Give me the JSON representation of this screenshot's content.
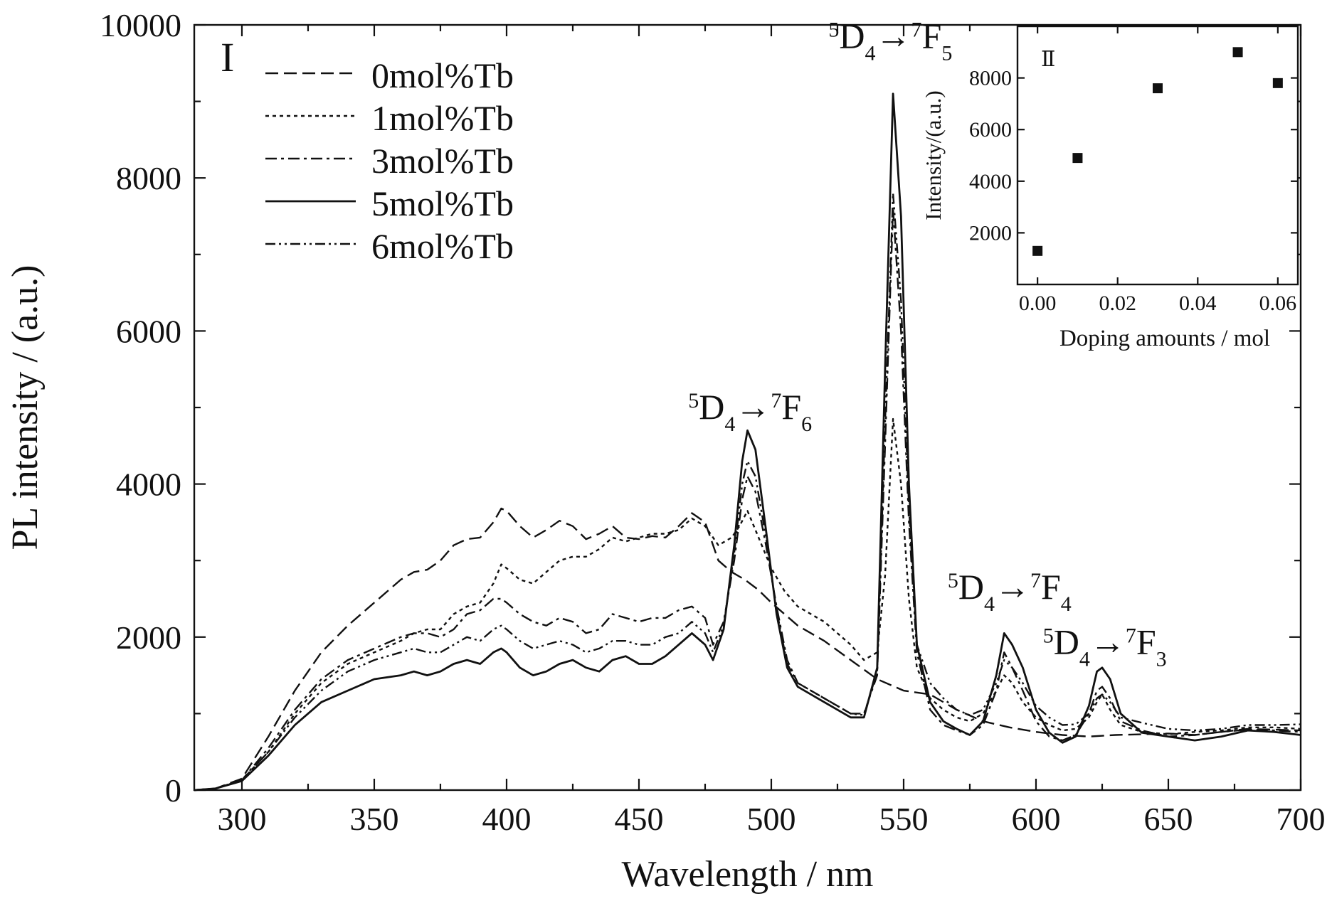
{
  "chart_data": [
    {
      "type": "line",
      "panel_label": "I",
      "xlabel": "Wavelength / nm",
      "ylabel": "PL intensity / (a.u.)",
      "xlim": [
        282,
        700
      ],
      "ylim": [
        0,
        10000
      ],
      "xticks": [
        300,
        350,
        400,
        450,
        500,
        550,
        600,
        650,
        700
      ],
      "yticks": [
        0,
        2000,
        4000,
        6000,
        8000,
        10000
      ],
      "grid": false,
      "legend_position": "top-left",
      "annotations": [
        {
          "pre": "5",
          "main": "D",
          "sub": "4",
          "arrow": "→",
          "pre2": "7",
          "main2": "F",
          "sub2": "5",
          "x": 545,
          "y": 9700
        },
        {
          "pre": "5",
          "main": "D",
          "sub": "4",
          "arrow": "→",
          "pre2": "7",
          "main2": "F",
          "sub2": "6",
          "x": 492,
          "y": 4850
        },
        {
          "pre": "5",
          "main": "D",
          "sub": "4",
          "arrow": "→",
          "pre2": "7",
          "main2": "F",
          "sub2": "4",
          "x": 590,
          "y": 2500
        },
        {
          "pre": "5",
          "main": "D",
          "sub": "4",
          "arrow": "→",
          "pre2": "7",
          "main2": "F",
          "sub2": "3",
          "x": 626,
          "y": 1780
        }
      ],
      "series": [
        {
          "name": "0mol%Tb",
          "dash": "dash",
          "x": [
            282,
            290,
            300,
            310,
            320,
            330,
            340,
            350,
            360,
            365,
            370,
            375,
            380,
            385,
            390,
            395,
            398,
            400,
            405,
            410,
            415,
            420,
            425,
            430,
            435,
            440,
            445,
            450,
            455,
            460,
            465,
            470,
            475,
            480,
            485,
            490,
            495,
            500,
            510,
            520,
            530,
            540,
            550,
            560,
            570,
            580,
            590,
            600,
            610,
            620,
            630,
            640,
            650,
            660,
            670,
            680,
            690,
            700
          ],
          "y": [
            0,
            20,
            150,
            700,
            1300,
            1800,
            2150,
            2450,
            2750,
            2850,
            2880,
            3000,
            3200,
            3280,
            3300,
            3500,
            3680,
            3650,
            3450,
            3300,
            3400,
            3520,
            3450,
            3280,
            3350,
            3450,
            3300,
            3280,
            3320,
            3300,
            3450,
            3620,
            3500,
            3000,
            2850,
            2750,
            2620,
            2450,
            2150,
            1950,
            1700,
            1450,
            1300,
            1250,
            1050,
            900,
            820,
            760,
            720,
            700,
            720,
            730,
            740,
            720,
            760,
            800,
            790,
            780
          ]
        },
        {
          "name": "1mol%Tb",
          "dash": "dot",
          "x": [
            282,
            290,
            300,
            310,
            320,
            330,
            340,
            350,
            360,
            365,
            370,
            375,
            380,
            385,
            390,
            395,
            398,
            400,
            405,
            410,
            415,
            420,
            425,
            430,
            435,
            440,
            445,
            450,
            455,
            460,
            465,
            470,
            475,
            480,
            485,
            488,
            491,
            494,
            500,
            505,
            510,
            520,
            530,
            535,
            540,
            543,
            546,
            549,
            552,
            555,
            560,
            565,
            570,
            575,
            580,
            585,
            588,
            591,
            595,
            600,
            605,
            610,
            615,
            620,
            623,
            625,
            628,
            632,
            640,
            650,
            660,
            670,
            680,
            690,
            700
          ],
          "y": [
            0,
            20,
            130,
            500,
            1000,
            1400,
            1650,
            1800,
            1950,
            2050,
            2100,
            2100,
            2300,
            2400,
            2450,
            2700,
            2950,
            2900,
            2750,
            2700,
            2850,
            3000,
            3050,
            3050,
            3150,
            3300,
            3250,
            3300,
            3350,
            3350,
            3400,
            3550,
            3450,
            3200,
            3300,
            3450,
            3650,
            3400,
            2900,
            2600,
            2400,
            2200,
            1900,
            1700,
            1800,
            2800,
            4850,
            4000,
            2500,
            1600,
            1200,
            1050,
            950,
            900,
            1000,
            1300,
            1500,
            1400,
            1150,
            950,
            850,
            780,
            800,
            950,
            1150,
            1250,
            1050,
            850,
            760,
            730,
            760,
            780,
            820,
            820,
            800
          ]
        },
        {
          "name": "3mol%Tb",
          "dash": "dashdot",
          "x": [
            282,
            290,
            300,
            310,
            320,
            330,
            340,
            350,
            360,
            365,
            370,
            375,
            380,
            385,
            390,
            395,
            398,
            400,
            405,
            410,
            415,
            420,
            425,
            430,
            435,
            440,
            445,
            450,
            455,
            460,
            465,
            470,
            475,
            478,
            482,
            486,
            489,
            491,
            494,
            498,
            502,
            506,
            510,
            520,
            530,
            535,
            540,
            543,
            546,
            549,
            552,
            555,
            560,
            565,
            570,
            575,
            580,
            585,
            588,
            591,
            595,
            600,
            605,
            610,
            615,
            620,
            623,
            625,
            628,
            632,
            640,
            650,
            660,
            670,
            680,
            690,
            700
          ],
          "y": [
            0,
            20,
            130,
            550,
            1050,
            1450,
            1700,
            1850,
            2000,
            2050,
            2050,
            2000,
            2100,
            2300,
            2350,
            2500,
            2500,
            2450,
            2300,
            2200,
            2150,
            2250,
            2200,
            2050,
            2100,
            2300,
            2250,
            2200,
            2250,
            2250,
            2350,
            2400,
            2250,
            1900,
            2200,
            3000,
            3800,
            4100,
            3900,
            3200,
            2400,
            1700,
            1400,
            1200,
            1000,
            1000,
            1500,
            4500,
            7600,
            6000,
            3500,
            1800,
            1050,
            850,
            780,
            720,
            850,
            1300,
            1800,
            1600,
            1300,
            900,
            700,
            650,
            720,
            1000,
            1300,
            1350,
            1200,
            900,
            780,
            700,
            720,
            760,
            790,
            780,
            760
          ]
        },
        {
          "name": "5mol%Tb",
          "dash": "solid",
          "x": [
            282,
            290,
            300,
            310,
            320,
            330,
            340,
            350,
            360,
            365,
            370,
            375,
            380,
            385,
            390,
            395,
            398,
            400,
            405,
            410,
            415,
            420,
            425,
            430,
            435,
            440,
            445,
            450,
            455,
            460,
            465,
            470,
            475,
            478,
            482,
            486,
            489,
            491,
            494,
            498,
            502,
            506,
            510,
            520,
            530,
            535,
            540,
            543,
            546,
            549,
            552,
            555,
            560,
            565,
            570,
            575,
            580,
            585,
            588,
            591,
            595,
            600,
            605,
            610,
            615,
            620,
            623,
            625,
            628,
            632,
            640,
            650,
            660,
            670,
            680,
            690,
            700
          ],
          "y": [
            0,
            20,
            120,
            450,
            850,
            1150,
            1300,
            1450,
            1500,
            1550,
            1500,
            1550,
            1650,
            1700,
            1650,
            1800,
            1850,
            1800,
            1600,
            1500,
            1550,
            1650,
            1700,
            1600,
            1550,
            1700,
            1750,
            1650,
            1650,
            1750,
            1900,
            2050,
            1900,
            1700,
            2100,
            3200,
            4300,
            4700,
            4450,
            3400,
            2300,
            1600,
            1350,
            1150,
            950,
            950,
            1600,
            5500,
            9100,
            7500,
            4000,
            1900,
            1150,
            900,
            800,
            720,
            900,
            1500,
            2050,
            1900,
            1600,
            1050,
            750,
            620,
            700,
            1100,
            1550,
            1600,
            1450,
            1000,
            750,
            700,
            650,
            700,
            780,
            760,
            720
          ]
        },
        {
          "name": "6mol%Tb",
          "dash": "dashdotdot",
          "x": [
            282,
            290,
            300,
            310,
            320,
            330,
            340,
            350,
            360,
            365,
            370,
            375,
            380,
            385,
            390,
            395,
            398,
            400,
            405,
            410,
            415,
            420,
            425,
            430,
            435,
            440,
            445,
            450,
            455,
            460,
            465,
            470,
            475,
            478,
            482,
            486,
            489,
            491,
            494,
            498,
            502,
            506,
            510,
            520,
            530,
            535,
            540,
            543,
            546,
            549,
            552,
            555,
            560,
            565,
            570,
            575,
            580,
            585,
            588,
            591,
            595,
            600,
            605,
            610,
            615,
            620,
            623,
            625,
            628,
            632,
            640,
            650,
            660,
            670,
            680,
            690,
            700
          ],
          "y": [
            0,
            20,
            130,
            500,
            950,
            1300,
            1550,
            1700,
            1800,
            1850,
            1800,
            1800,
            1900,
            2000,
            1950,
            2100,
            2150,
            2100,
            1950,
            1850,
            1900,
            1950,
            1900,
            1800,
            1850,
            1950,
            1950,
            1900,
            1900,
            2000,
            2050,
            2200,
            2050,
            1800,
            2150,
            3100,
            4000,
            4300,
            4100,
            3300,
            2350,
            1650,
            1400,
            1200,
            1000,
            980,
            1550,
            4800,
            7800,
            6400,
            3700,
            1900,
            1400,
            1200,
            1050,
            980,
            1050,
            1400,
            1700,
            1600,
            1400,
            1100,
            950,
            850,
            860,
            1000,
            1200,
            1250,
            1150,
            950,
            880,
            800,
            780,
            800,
            850,
            850,
            860
          ]
        }
      ]
    },
    {
      "type": "scatter",
      "panel_label": "Ⅱ",
      "xlabel": "Doping amounts / mol",
      "ylabel": "Intensity/(a.u.)",
      "xlim": [
        -0.005,
        0.065
      ],
      "ylim": [
        0,
        10000
      ],
      "xticks": [
        0.0,
        0.02,
        0.04,
        0.06
      ],
      "xtick_labels": [
        "0.00",
        "0.02",
        "0.04",
        "0.06"
      ],
      "yticks": [
        2000,
        4000,
        6000,
        8000
      ],
      "grid": false,
      "series": [
        {
          "name": "",
          "x": [
            0.0,
            0.01,
            0.03,
            0.05,
            0.06
          ],
          "y": [
            1300,
            4900,
            7600,
            9000,
            7800
          ]
        }
      ]
    }
  ]
}
